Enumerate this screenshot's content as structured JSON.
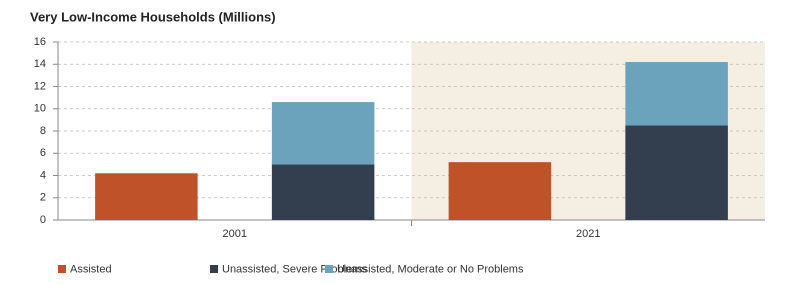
{
  "chart_data": {
    "type": "bar",
    "title": "Very Low-Income Households (Millions)",
    "categories": [
      "2001",
      "2021"
    ],
    "series": [
      {
        "name": "Assisted",
        "color": "#c0522a",
        "values": [
          4.2,
          5.2
        ]
      },
      {
        "name": "Unassisted, Severe Problems",
        "color": "#333f4f",
        "values": [
          5.0,
          8.5
        ]
      },
      {
        "name": "Unassisted, Moderate or No Problems",
        "color": "#6aa3bb",
        "values": [
          5.6,
          5.7
        ]
      }
    ],
    "ylim": [
      0,
      16
    ],
    "yticks": [
      0,
      2,
      4,
      6,
      8,
      10,
      12,
      14,
      16
    ],
    "grid": true,
    "legend": "bottom"
  }
}
